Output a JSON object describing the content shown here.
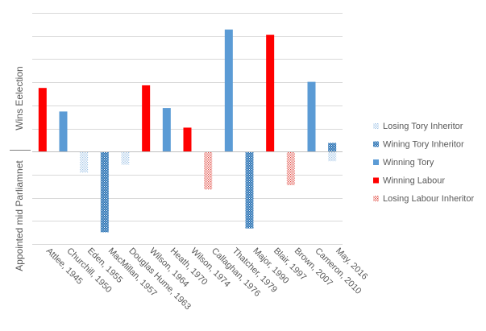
{
  "chart_data": {
    "type": "bar",
    "categories": [
      "Attlee, 1945",
      "Churchill, 1950",
      "Eden, 1955",
      "MacMillan, 1957",
      "Douglas Hume, 1963",
      "Wilson, 1964",
      "Heath, 1970",
      "Wilson, 1974",
      "Callaghan, 1976",
      "Thatcher, 1979",
      "Major, 1990",
      "Blair, 1997",
      "Brown, 2007",
      "Cameron, 2010",
      "May, 2016"
    ],
    "category_types": [
      "Winning Labour",
      "Winning Tory",
      "Losing Tory Inheritor",
      "Wining Tory Inheritor",
      "Losing Tory Inheritor",
      "Winning Labour",
      "Winning Tory",
      "Winning Labour",
      "Losing Labour Inheritor",
      "Winning Tory",
      "Wining Tory Inheritor",
      "Winning Labour",
      "Losing Labour Inheritor",
      "Winning Tory",
      "Wining Tory Inheritor"
    ],
    "values": [
      146,
      92,
      -48,
      -185,
      -30,
      152,
      100,
      55,
      -87,
      280,
      -176,
      268,
      -77,
      160,
      20
    ],
    "values_secondary": [
      null,
      null,
      null,
      null,
      null,
      null,
      null,
      null,
      null,
      null,
      null,
      null,
      null,
      null,
      -22
    ],
    "secondary_types": [
      null,
      null,
      null,
      null,
      null,
      null,
      null,
      null,
      null,
      null,
      null,
      null,
      null,
      null,
      "Losing Tory Inheritor"
    ],
    "ylim": [
      -212,
      320
    ],
    "ytick_step": 53,
    "y_axis_labels": {
      "upper": "Wins Eelection",
      "lower": "Appointed mid Parliamnet"
    },
    "grid": true,
    "legend_position": "right",
    "legend": [
      {
        "name": "Losing Tory Inheritor",
        "key": "losing_tory"
      },
      {
        "name": "Wining Tory Inheritor",
        "key": "wining_tory"
      },
      {
        "name": "Winning Tory",
        "key": "winning_tory"
      },
      {
        "name": "Winning Labour",
        "key": "winning_labour"
      },
      {
        "name": "Losing Labour Inheritor",
        "key": "losing_labour"
      }
    ],
    "colors": {
      "Winning Labour": "#ff0000",
      "Winning Tory": "#5b9bd5",
      "Wining Tory Inheritor": "#2e75b6",
      "Losing Tory Inheritor": "#9dc3e6",
      "Losing Labour Inheritor": "#e0433b",
      "grid": "#d9d9d9",
      "text": "#595959",
      "axis": "#bfbfbf"
    }
  }
}
